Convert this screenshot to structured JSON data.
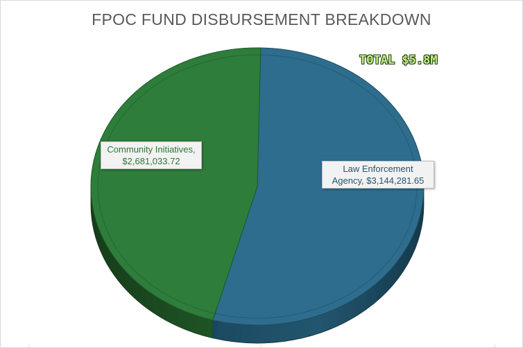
{
  "chart_data": {
    "type": "pie",
    "title": "FPOC FUND DISBURSEMENT BREAKDOWN",
    "annotation": "TOTAL $5.8M",
    "slices": [
      {
        "label_line1": "Law Enforcement",
        "label_line2": "Agency, $3,144,281.65",
        "name": "Law Enforcement Agency",
        "value": 3144281.65,
        "color": "#2e6d8e"
      },
      {
        "label_line1": "Community Initiatives,",
        "label_line2": "$2,681,033.72",
        "name": "Community Initiatives",
        "value": 2681033.72,
        "color": "#2e7d3a"
      }
    ],
    "style": "3d-pie",
    "legend": "none"
  }
}
